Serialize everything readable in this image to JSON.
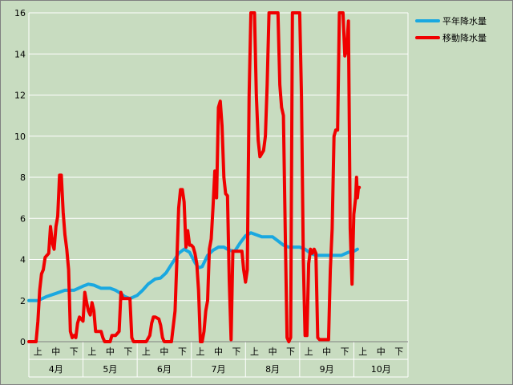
{
  "chart_data": {
    "type": "line",
    "title": "",
    "xlabel": "",
    "ylabel": "",
    "ylim": [
      0,
      16
    ],
    "yticks": [
      "0",
      "2",
      "4",
      "6",
      "8",
      "10",
      "12",
      "14",
      "16"
    ],
    "grid": true,
    "legend_position": "top-right",
    "months": [
      "4月",
      "5月",
      "6月",
      "7月",
      "8月",
      "9月",
      "10月"
    ],
    "dekads": [
      "上",
      "中",
      "下"
    ],
    "x_domain": [
      0,
      21
    ],
    "series": [
      {
        "name": "平年降水量",
        "color": "#1aa8e0",
        "points": [
          [
            0,
            2.0
          ],
          [
            0.5,
            2.0
          ],
          [
            1,
            2.2
          ],
          [
            1.5,
            2.35
          ],
          [
            2,
            2.5
          ],
          [
            2.5,
            2.5
          ],
          [
            3,
            2.7
          ],
          [
            3.3,
            2.8
          ],
          [
            3.6,
            2.75
          ],
          [
            4,
            2.6
          ],
          [
            4.5,
            2.6
          ],
          [
            4.8,
            2.5
          ],
          [
            5,
            2.4
          ],
          [
            5.3,
            2.2
          ],
          [
            5.6,
            2.1
          ],
          [
            6,
            2.25
          ],
          [
            6.3,
            2.5
          ],
          [
            6.6,
            2.8
          ],
          [
            7,
            3.05
          ],
          [
            7.3,
            3.1
          ],
          [
            7.6,
            3.35
          ],
          [
            8,
            3.9
          ],
          [
            8.3,
            4.3
          ],
          [
            8.6,
            4.5
          ],
          [
            8.9,
            4.35
          ],
          [
            9.2,
            3.85
          ],
          [
            9.4,
            3.6
          ],
          [
            9.6,
            3.65
          ],
          [
            9.9,
            4.2
          ],
          [
            10.2,
            4.45
          ],
          [
            10.5,
            4.6
          ],
          [
            10.8,
            4.6
          ],
          [
            11.1,
            4.45
          ],
          [
            11.4,
            4.4
          ],
          [
            11.7,
            4.8
          ],
          [
            12,
            5.15
          ],
          [
            12.3,
            5.3
          ],
          [
            12.6,
            5.2
          ],
          [
            12.9,
            5.1
          ],
          [
            13.2,
            5.1
          ],
          [
            13.5,
            5.1
          ],
          [
            13.8,
            4.9
          ],
          [
            14.1,
            4.7
          ],
          [
            14.4,
            4.6
          ],
          [
            14.7,
            4.6
          ],
          [
            15,
            4.6
          ],
          [
            15.3,
            4.5
          ],
          [
            15.6,
            4.3
          ],
          [
            15.9,
            4.2
          ],
          [
            16.5,
            4.2
          ],
          [
            17,
            4.2
          ],
          [
            17.3,
            4.2
          ],
          [
            17.7,
            4.35
          ],
          [
            18,
            4.4
          ],
          [
            18.2,
            4.5
          ]
        ]
      },
      {
        "name": "移動降水量",
        "color": "#f00000",
        "points": [
          [
            0,
            0
          ],
          [
            0.4,
            0
          ],
          [
            0.5,
            1
          ],
          [
            0.6,
            2.5
          ],
          [
            0.7,
            3.3
          ],
          [
            0.8,
            3.5
          ],
          [
            0.9,
            4.1
          ],
          [
            1.0,
            4.2
          ],
          [
            1.1,
            4.3
          ],
          [
            1.2,
            5.6
          ],
          [
            1.3,
            4.8
          ],
          [
            1.4,
            4.5
          ],
          [
            1.5,
            5.6
          ],
          [
            1.6,
            6.1
          ],
          [
            1.7,
            8.1
          ],
          [
            1.8,
            8.1
          ],
          [
            1.9,
            6.3
          ],
          [
            2.0,
            5.2
          ],
          [
            2.1,
            4.5
          ],
          [
            2.2,
            3.5
          ],
          [
            2.3,
            0.5
          ],
          [
            2.4,
            0.2
          ],
          [
            2.5,
            0.3
          ],
          [
            2.6,
            0.2
          ],
          [
            2.7,
            0.9
          ],
          [
            2.8,
            1.2
          ],
          [
            2.9,
            1.1
          ],
          [
            3.0,
            1.0
          ],
          [
            3.1,
            2.4
          ],
          [
            3.2,
            1.9
          ],
          [
            3.3,
            1.5
          ],
          [
            3.4,
            1.3
          ],
          [
            3.5,
            1.9
          ],
          [
            3.6,
            1.5
          ],
          [
            3.7,
            0.5
          ],
          [
            4.0,
            0.5
          ],
          [
            4.1,
            0.2
          ],
          [
            4.2,
            0
          ],
          [
            4.5,
            0
          ],
          [
            4.6,
            0.3
          ],
          [
            4.8,
            0.3
          ],
          [
            5.0,
            0.5
          ],
          [
            5.1,
            2.4
          ],
          [
            5.2,
            2.1
          ],
          [
            5.3,
            2.1
          ],
          [
            5.6,
            2.1
          ],
          [
            5.7,
            0.2
          ],
          [
            5.8,
            0
          ],
          [
            6.5,
            0
          ],
          [
            6.7,
            0.3
          ],
          [
            6.8,
            0.9
          ],
          [
            6.9,
            1.2
          ],
          [
            7.0,
            1.2
          ],
          [
            7.2,
            1.1
          ],
          [
            7.3,
            0.8
          ],
          [
            7.4,
            0.2
          ],
          [
            7.5,
            0
          ],
          [
            7.9,
            0
          ],
          [
            8.1,
            1.5
          ],
          [
            8.2,
            4.0
          ],
          [
            8.3,
            6.5
          ],
          [
            8.4,
            7.4
          ],
          [
            8.5,
            7.4
          ],
          [
            8.6,
            6.8
          ],
          [
            8.7,
            4.6
          ],
          [
            8.8,
            5.4
          ],
          [
            8.9,
            4.7
          ],
          [
            9.0,
            4.7
          ],
          [
            9.1,
            4.6
          ],
          [
            9.2,
            4.3
          ],
          [
            9.3,
            3.8
          ],
          [
            9.4,
            2.5
          ],
          [
            9.5,
            0
          ],
          [
            9.6,
            0
          ],
          [
            9.7,
            0.5
          ],
          [
            9.8,
            1.5
          ],
          [
            9.9,
            2.0
          ],
          [
            10.0,
            4.5
          ],
          [
            10.1,
            5.0
          ],
          [
            10.2,
            6.5
          ],
          [
            10.3,
            8.3
          ],
          [
            10.4,
            7.0
          ],
          [
            10.5,
            11.4
          ],
          [
            10.6,
            11.7
          ],
          [
            10.7,
            10.5
          ],
          [
            10.8,
            8.0
          ],
          [
            10.9,
            7.2
          ],
          [
            11.0,
            7.1
          ],
          [
            11.1,
            3.0
          ],
          [
            11.2,
            0.1
          ],
          [
            11.3,
            4.4
          ],
          [
            11.8,
            4.4
          ],
          [
            11.9,
            3.5
          ],
          [
            12.0,
            2.9
          ],
          [
            12.1,
            3.5
          ],
          [
            12.2,
            12.0
          ],
          [
            12.3,
            16
          ],
          [
            12.5,
            16
          ],
          [
            12.6,
            12.0
          ],
          [
            12.7,
            9.8
          ],
          [
            12.8,
            9.0
          ],
          [
            13.0,
            9.3
          ],
          [
            13.1,
            10.0
          ],
          [
            13.2,
            12.5
          ],
          [
            13.3,
            16
          ],
          [
            13.8,
            16
          ],
          [
            13.9,
            12.5
          ],
          [
            14.0,
            11.4
          ],
          [
            14.1,
            11.0
          ],
          [
            14.2,
            5.5
          ],
          [
            14.3,
            0.2
          ],
          [
            14.4,
            0
          ],
          [
            14.5,
            0.2
          ],
          [
            14.6,
            16
          ],
          [
            14.7,
            16
          ],
          [
            14.8,
            16
          ],
          [
            15.0,
            16
          ],
          [
            15.1,
            12.0
          ],
          [
            15.2,
            4.0
          ],
          [
            15.3,
            0.3
          ],
          [
            15.4,
            0.3
          ],
          [
            15.5,
            3.8
          ],
          [
            15.6,
            4.5
          ],
          [
            15.7,
            4.3
          ],
          [
            15.8,
            4.5
          ],
          [
            15.9,
            4.3
          ],
          [
            16.0,
            0.2
          ],
          [
            16.1,
            0.1
          ],
          [
            16.5,
            0.1
          ],
          [
            16.6,
            0.1
          ],
          [
            16.7,
            3.5
          ],
          [
            16.8,
            5.5
          ],
          [
            16.9,
            10.0
          ],
          [
            17.0,
            10.3
          ],
          [
            17.1,
            10.3
          ],
          [
            17.2,
            16
          ],
          [
            17.4,
            16
          ],
          [
            17.5,
            13.9
          ],
          [
            17.6,
            14.2
          ],
          [
            17.7,
            15.6
          ],
          [
            17.8,
            5.5
          ],
          [
            17.9,
            2.8
          ],
          [
            18.0,
            6.2
          ],
          [
            18.1,
            7.0
          ],
          [
            18.15,
            8.0
          ],
          [
            18.2,
            7.0
          ],
          [
            18.25,
            7.5
          ],
          [
            18.3,
            7.5
          ]
        ]
      }
    ]
  }
}
